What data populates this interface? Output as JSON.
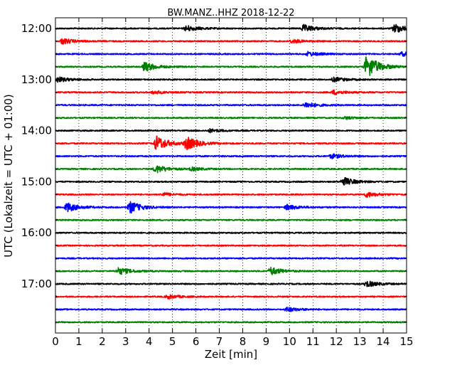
{
  "chart_data": {
    "type": "line",
    "title": "BW.MANZ..HHZ 2018-12-22",
    "xlabel": "Zeit  [min]",
    "ylabel": "UTC (Lokalzeit = UTC + 01:00)",
    "xlim": [
      0,
      15
    ],
    "x_ticks": [
      "0",
      "1",
      "2",
      "3",
      "4",
      "5",
      "6",
      "7",
      "8",
      "9",
      "10",
      "11",
      "12",
      "13",
      "14",
      "15"
    ],
    "y_tick_labels": [
      "12:00",
      "13:00",
      "14:00",
      "15:00",
      "16:00",
      "17:00"
    ],
    "grid": "vertical dotted at each minute",
    "trace_colors": [
      "#000000",
      "#ff0000",
      "#0000ff",
      "#008000"
    ],
    "traces": [
      {
        "start": "12:00",
        "color": "#000000",
        "events": [
          {
            "t": 5.6,
            "amp": 0.45
          },
          {
            "t": 10.6,
            "amp": 0.55
          },
          {
            "t": 14.5,
            "amp": 0.7
          }
        ]
      },
      {
        "start": "12:15",
        "color": "#ff0000",
        "events": [
          {
            "t": 0.3,
            "amp": 0.45
          },
          {
            "t": 10.1,
            "amp": 0.3
          }
        ]
      },
      {
        "start": "12:30",
        "color": "#0000ff",
        "events": [
          {
            "t": 10.8,
            "amp": 0.35
          },
          {
            "t": 14.8,
            "amp": 0.3
          }
        ]
      },
      {
        "start": "12:45",
        "color": "#008000",
        "events": [
          {
            "t": 3.8,
            "amp": 0.75
          },
          {
            "t": 13.3,
            "amp": 1.9
          }
        ]
      },
      {
        "start": "13:00",
        "color": "#000000",
        "events": [
          {
            "t": 0.1,
            "amp": 0.4
          },
          {
            "t": 11.9,
            "amp": 0.35
          }
        ]
      },
      {
        "start": "13:15",
        "color": "#ff0000",
        "events": [
          {
            "t": 4.2,
            "amp": 0.25
          },
          {
            "t": 11.9,
            "amp": 0.35
          }
        ]
      },
      {
        "start": "13:30",
        "color": "#0000ff",
        "events": [
          {
            "t": 10.7,
            "amp": 0.45
          }
        ]
      },
      {
        "start": "13:45",
        "color": "#008000",
        "events": [
          {
            "t": 12.4,
            "amp": 0.2
          }
        ]
      },
      {
        "start": "14:00",
        "color": "#000000",
        "events": [
          {
            "t": 6.6,
            "amp": 0.25
          }
        ]
      },
      {
        "start": "14:15",
        "color": "#ff0000",
        "events": [
          {
            "t": 4.3,
            "amp": 1.2
          },
          {
            "t": 5.6,
            "amp": 1.0
          }
        ]
      },
      {
        "start": "14:30",
        "color": "#0000ff",
        "events": [
          {
            "t": 11.8,
            "amp": 0.35
          }
        ]
      },
      {
        "start": "14:45",
        "color": "#008000",
        "events": [
          {
            "t": 4.3,
            "amp": 0.6
          },
          {
            "t": 5.8,
            "amp": 0.25
          }
        ]
      },
      {
        "start": "15:00",
        "color": "#000000",
        "events": [
          {
            "t": 12.3,
            "amp": 0.65
          }
        ]
      },
      {
        "start": "15:15",
        "color": "#ff0000",
        "events": [
          {
            "t": 4.6,
            "amp": 0.25
          },
          {
            "t": 13.3,
            "amp": 0.4
          }
        ]
      },
      {
        "start": "15:30",
        "color": "#0000ff",
        "events": [
          {
            "t": 0.5,
            "amp": 0.7
          },
          {
            "t": 3.2,
            "amp": 0.9
          },
          {
            "t": 9.9,
            "amp": 0.4
          }
        ]
      },
      {
        "start": "15:45",
        "color": "#008000",
        "events": []
      },
      {
        "start": "16:00",
        "color": "#000000",
        "events": []
      },
      {
        "start": "16:15",
        "color": "#ff0000",
        "events": []
      },
      {
        "start": "16:30",
        "color": "#0000ff",
        "events": []
      },
      {
        "start": "16:45",
        "color": "#008000",
        "events": [
          {
            "t": 2.7,
            "amp": 0.55
          },
          {
            "t": 9.2,
            "amp": 0.6
          }
        ]
      },
      {
        "start": "17:00",
        "color": "#000000",
        "events": [
          {
            "t": 13.3,
            "amp": 0.45
          }
        ]
      },
      {
        "start": "17:15",
        "color": "#ff0000",
        "events": [
          {
            "t": 4.8,
            "amp": 0.3
          }
        ]
      },
      {
        "start": "17:30",
        "color": "#0000ff",
        "events": [
          {
            "t": 9.9,
            "amp": 0.35
          }
        ]
      },
      {
        "start": "17:45",
        "color": "#008000",
        "events": []
      }
    ]
  }
}
